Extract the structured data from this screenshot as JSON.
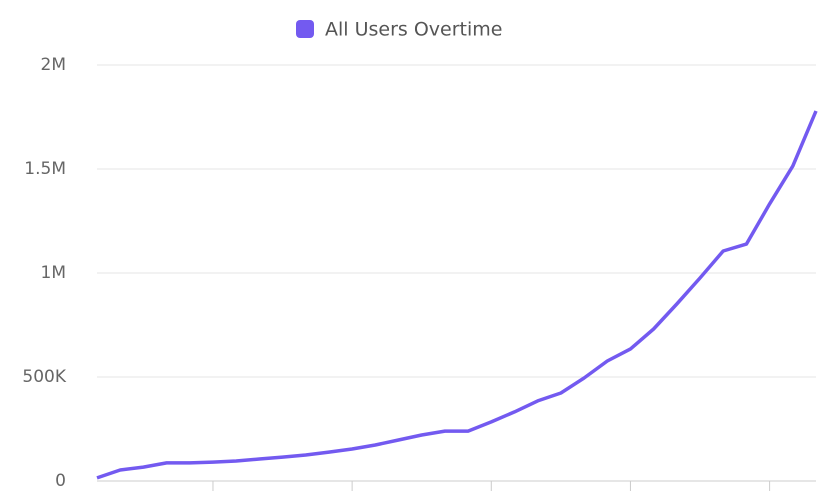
{
  "chart_data": {
    "type": "line",
    "categories": [
      null,
      null,
      null,
      null,
      null,
      null,
      null,
      null,
      null,
      null,
      null,
      null,
      null,
      null,
      null,
      null,
      null,
      null,
      null,
      null,
      null,
      null,
      null,
      null,
      null,
      null,
      null,
      null,
      null,
      null,
      null,
      null
    ],
    "series": [
      {
        "name": "All Users Overtime",
        "color": "#735af0",
        "values": [
          15000,
          53000,
          67000,
          87000,
          87000,
          91000,
          96000,
          106000,
          115000,
          125000,
          139000,
          154000,
          173000,
          197000,
          221000,
          240000,
          240000,
          284000,
          332000,
          385000,
          423000,
          495000,
          577000,
          635000,
          731000,
          851000,
          976000,
          1106000,
          1139000,
          1332000,
          1514000,
          1779000
        ]
      }
    ],
    "ylim": [
      0,
      2000000
    ],
    "yticks": [
      0,
      {
        "value": 500000,
        "label": "500K"
      },
      {
        "value": 1000000,
        "label": "1M"
      },
      {
        "value": 1500000,
        "label": "1.5M"
      },
      {
        "value": 2000000,
        "label": "2M"
      }
    ],
    "grid": true
  }
}
